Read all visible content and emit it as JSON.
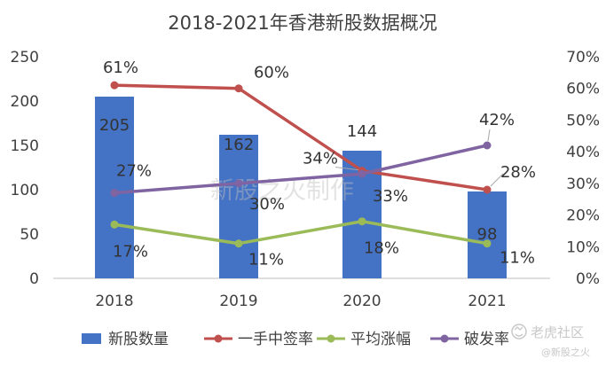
{
  "chart_data": {
    "type": "bar",
    "title": "2018-2021年香港新股数据概况",
    "categories": [
      "2018",
      "2019",
      "2020",
      "2021"
    ],
    "left_axis": {
      "min": 0,
      "max": 250,
      "step": 50,
      "ticks": [
        "0",
        "50",
        "100",
        "150",
        "200",
        "250"
      ]
    },
    "right_axis": {
      "min": 0,
      "max": 70,
      "step": 10,
      "ticks": [
        "0%",
        "10%",
        "20%",
        "30%",
        "40%",
        "50%",
        "60%",
        "70%"
      ]
    },
    "grid": false,
    "legend_position": "bottom",
    "series": [
      {
        "name": "新股数量",
        "type": "bar",
        "axis": "left",
        "color": "#4472c4",
        "values": [
          205,
          162,
          144,
          98
        ],
        "labels": [
          "205",
          "162",
          "144",
          "98"
        ]
      },
      {
        "name": "一手中签率",
        "type": "line",
        "axis": "right",
        "color": "#c0504d",
        "values": [
          61,
          60,
          34,
          28
        ],
        "labels": [
          "61%",
          "60%",
          "34%",
          "28%"
        ]
      },
      {
        "name": "平均涨幅",
        "type": "line",
        "axis": "right",
        "color": "#9bbb59",
        "values": [
          17,
          11,
          18,
          11
        ],
        "labels": [
          "17%",
          "11%",
          "18%",
          "11%"
        ]
      },
      {
        "name": "破发率",
        "type": "line",
        "axis": "right",
        "color": "#8064a2",
        "values": [
          27,
          30,
          33,
          42
        ],
        "labels": [
          "27%",
          "30%",
          "33%",
          "42%"
        ]
      }
    ]
  },
  "watermarks": {
    "center": "新股之火制作",
    "corner_brand": "老虎社区",
    "corner_handle": "@新股之火"
  }
}
